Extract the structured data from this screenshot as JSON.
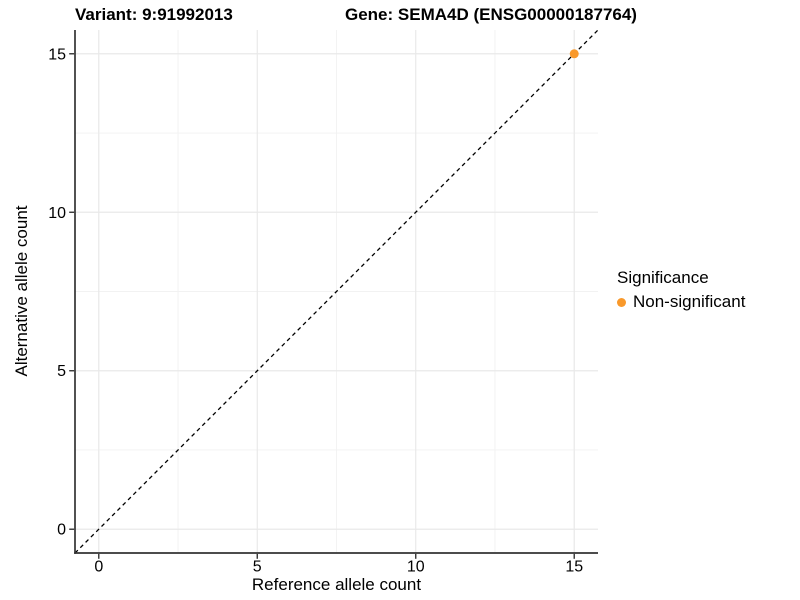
{
  "titles": {
    "variant": "Variant: 9:91992013",
    "gene": "Gene: SEMA4D (ENSG00000187764)"
  },
  "legend": {
    "title": "Significance",
    "items": [
      {
        "label": "Non-significant",
        "color": "#F9992B"
      }
    ]
  },
  "chart_data": {
    "type": "scatter",
    "title": "Variant: 9:91992013    Gene: SEMA4D (ENSG00000187764)",
    "xlabel": "Reference allele count",
    "ylabel": "Alternative allele count",
    "xlim": [
      -0.75,
      15.75
    ],
    "ylim": [
      -0.75,
      15.75
    ],
    "x_ticks": [
      0,
      5,
      10,
      15
    ],
    "y_ticks": [
      0,
      5,
      10,
      15
    ],
    "x_minor_ticks": [
      2.5,
      7.5,
      12.5
    ],
    "y_minor_ticks": [
      2.5,
      7.5,
      12.5
    ],
    "series": [
      {
        "name": "Non-significant",
        "color": "#F9992B",
        "points": [
          {
            "x": 15,
            "y": 15
          }
        ]
      }
    ],
    "reference_line": {
      "type": "identity",
      "from": [
        -0.75,
        -0.75
      ],
      "to": [
        15.75,
        15.75
      ],
      "style": "dashed",
      "color": "#000000"
    },
    "grid": true,
    "legend_position": "right"
  },
  "style": {
    "grid_major_color": "#E9E9E9",
    "grid_minor_color": "#F2F2F2",
    "axis_line_color": "#333333",
    "tick_color": "#333333",
    "tick_label_color": "#000000",
    "point_radius": 4.5
  }
}
